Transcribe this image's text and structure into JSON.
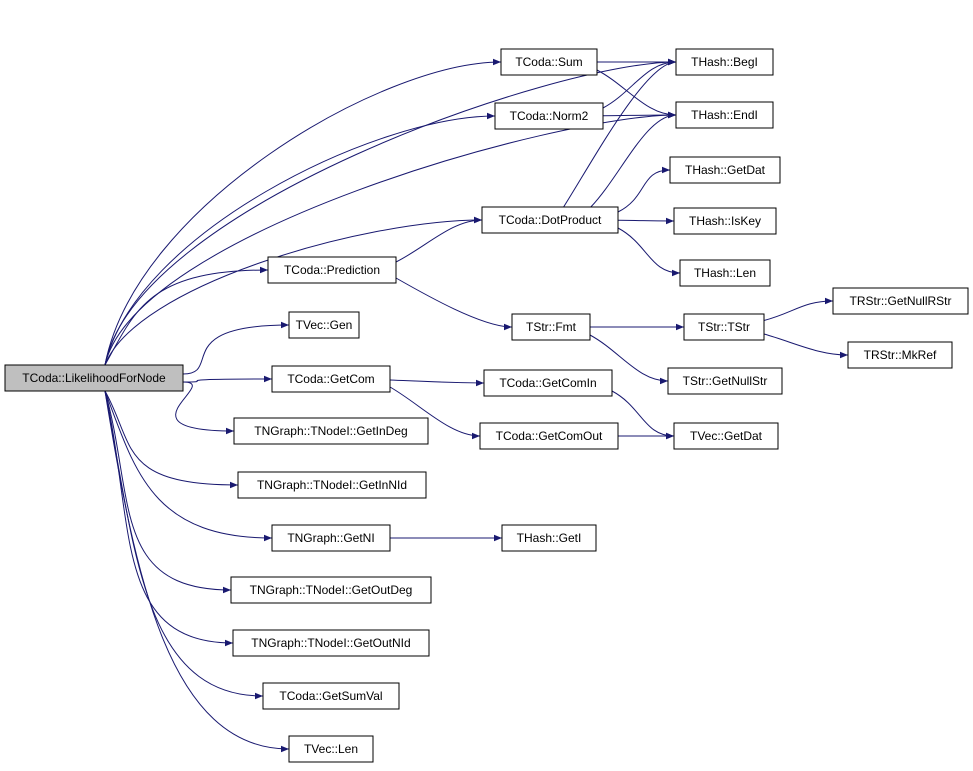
{
  "nodes": [
    {
      "label": "TCoda::LikelihoodForNode"
    },
    {
      "label": "THash::BegI"
    },
    {
      "label": "TCoda::Sum"
    },
    {
      "label": "TCoda::Norm2"
    },
    {
      "label": "THash::EndI"
    },
    {
      "label": "TCoda::DotProduct"
    },
    {
      "label": "THash::GetDat"
    },
    {
      "label": "THash::IsKey"
    },
    {
      "label": "THash::Len"
    },
    {
      "label": "TCoda::Prediction"
    },
    {
      "label": "TStr::Fmt"
    },
    {
      "label": "TStr::TStr"
    },
    {
      "label": "TRStr::GetNullRStr"
    },
    {
      "label": "TRStr::MkRef"
    },
    {
      "label": "TStr::GetNullStr"
    },
    {
      "label": "TVec::Gen"
    },
    {
      "label": "TCoda::GetCom"
    },
    {
      "label": "TCoda::GetComIn"
    },
    {
      "label": "TCoda::GetComOut"
    },
    {
      "label": "TVec::GetDat"
    },
    {
      "label": "TNGraph::TNodeI::GetInDeg"
    },
    {
      "label": "TNGraph::TNodeI::GetInNId"
    },
    {
      "label": "TNGraph::GetNI"
    },
    {
      "label": "THash::GetI"
    },
    {
      "label": "TNGraph::TNodeI::GetOutDeg"
    },
    {
      "label": "TNGraph::TNodeI::GetOutNId"
    },
    {
      "label": "TCoda::GetSumVal"
    },
    {
      "label": "TVec::Len"
    }
  ]
}
